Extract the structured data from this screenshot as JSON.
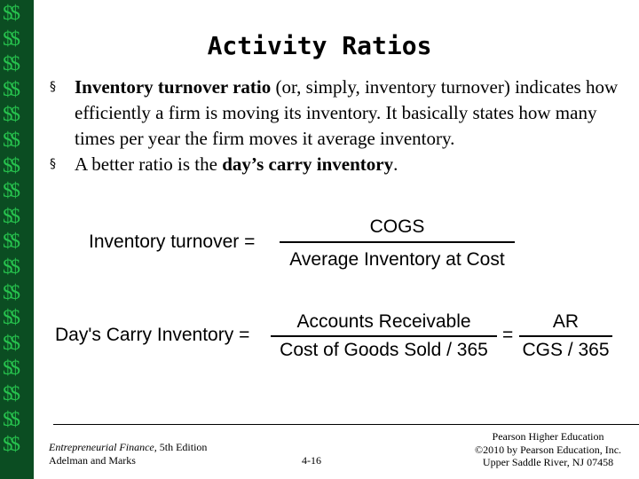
{
  "sidebar": {
    "glyph": "$$",
    "count": 18,
    "color": "#27c24e",
    "background": "#0b4d22"
  },
  "slide": {
    "title": "Activity Ratios",
    "bullets": [
      {
        "marker": "§",
        "parts": [
          {
            "text": "Inventory turnover ratio",
            "bold": true
          },
          {
            "text": " (or, simply, inventory turnover) indicates how efficiently a firm is moving its inventory. It basically states how many times per year the firm moves it average inventory.",
            "bold": false
          }
        ]
      },
      {
        "marker": "§",
        "parts": [
          {
            "text": "A better ratio is the ",
            "bold": false
          },
          {
            "text": "day’s carry inventory",
            "bold": true
          },
          {
            "text": ".",
            "bold": false
          }
        ]
      }
    ],
    "equations": {
      "inventory_turnover": {
        "lhs": "Inventory turnover =",
        "numerator": "COGS",
        "denominator": "Average Inventory at Cost"
      },
      "days_carry": {
        "lhs": "Day's Carry Inventory =",
        "numerator1": "Accounts Receivable",
        "denominator1": "Cost of Goods Sold / 365",
        "equals": "=",
        "numerator2": "AR",
        "denominator2": "CGS / 365"
      }
    },
    "footer": {
      "book_title": "Entrepreneurial Finance,",
      "edition": " 5th Edition",
      "authors": "Adelman and Marks",
      "page": "4-16",
      "publisher": [
        "Pearson Higher Education",
        "©2010 by Pearson Education, Inc.",
        "Upper Saddle River, NJ 07458"
      ]
    }
  }
}
